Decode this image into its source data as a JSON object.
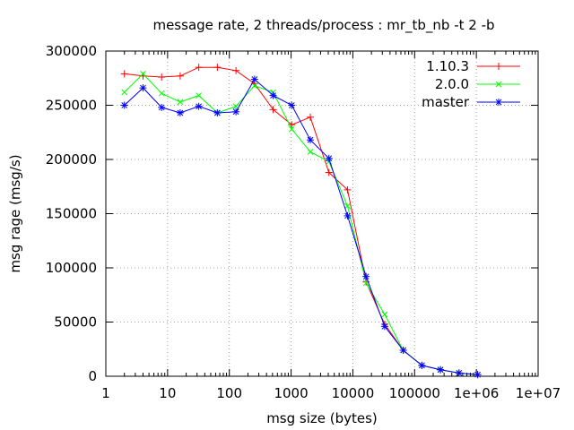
{
  "chart_data": {
    "type": "line",
    "title": "message rate, 2 threads/process : mr_tb_nb -t 2 -b",
    "xlabel": "msg size (bytes)",
    "ylabel": "msg rage (msg/s)",
    "x_scale": "log",
    "xlim": [
      1,
      10000000
    ],
    "ylim": [
      0,
      300000
    ],
    "grid": true,
    "legend_position": "top-right",
    "x_tick_labels": [
      "1",
      "10",
      "100",
      "1000",
      "10000",
      "100000",
      "1e+06",
      "1e+07"
    ],
    "y_tick_labels": [
      "0",
      "50000",
      "100000",
      "150000",
      "200000",
      "250000",
      "300000"
    ],
    "x": [
      2,
      4,
      8,
      16,
      32,
      64,
      128,
      256,
      512,
      1024,
      2048,
      4096,
      8192,
      16384,
      32768,
      65536,
      131072,
      262144,
      524288,
      1048576
    ],
    "series": [
      {
        "name": "1.10.3",
        "color": "#ff0000",
        "marker": "plus",
        "values": [
          279000,
          277000,
          276000,
          277000,
          285000,
          285000,
          282000,
          270000,
          246000,
          232000,
          239000,
          188000,
          172000,
          87000,
          48000,
          24000,
          10000,
          6000,
          3000,
          1500
        ]
      },
      {
        "name": "2.0.0",
        "color": "#00ff00",
        "marker": "cross",
        "values": [
          262000,
          279000,
          261000,
          253000,
          259000,
          243000,
          249000,
          268000,
          262000,
          228000,
          207000,
          198000,
          157000,
          86000,
          57000,
          24000,
          10000,
          6000,
          3000,
          1500
        ]
      },
      {
        "name": "master",
        "color": "#0000ff",
        "marker": "star",
        "values": [
          250000,
          266000,
          248000,
          243000,
          249000,
          243000,
          244000,
          274000,
          259000,
          250000,
          218000,
          201000,
          148000,
          92000,
          46000,
          24000,
          10000,
          6000,
          3000,
          1500
        ]
      }
    ]
  }
}
